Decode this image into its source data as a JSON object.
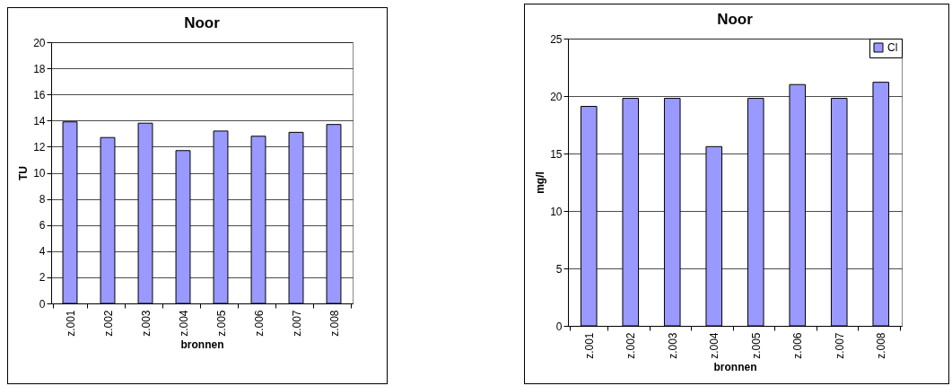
{
  "chart_data": [
    {
      "type": "bar",
      "title": "Noor",
      "xlabel": "bronnen",
      "ylabel": "TU",
      "categories": [
        "z.001",
        "z.002",
        "z.003",
        "z.004",
        "z.005",
        "z.006",
        "z.007",
        "z.008"
      ],
      "series": [
        {
          "color": "#9999ff",
          "values": [
            13.9,
            12.7,
            13.8,
            11.7,
            13.2,
            12.8,
            13.1,
            13.7
          ]
        }
      ],
      "ylim": [
        0,
        20
      ],
      "yticks": [
        0,
        2,
        4,
        6,
        8,
        10,
        12,
        14,
        16,
        18,
        20
      ],
      "grid": "y"
    },
    {
      "type": "bar",
      "title": "Noor",
      "xlabel": "bronnen",
      "ylabel": "mg/l",
      "categories": [
        "z.001",
        "z.002",
        "z.003",
        "z.004",
        "z.005",
        "z.006",
        "z.007",
        "z.008"
      ],
      "series": [
        {
          "name": "Cl",
          "color": "#9999ff",
          "values": [
            19.1,
            19.8,
            19.8,
            15.6,
            19.8,
            21.0,
            19.8,
            21.2
          ]
        }
      ],
      "ylim": [
        0,
        25
      ],
      "yticks": [
        0,
        5,
        10,
        15,
        20,
        25
      ],
      "grid": "y",
      "legend": "top right"
    }
  ]
}
